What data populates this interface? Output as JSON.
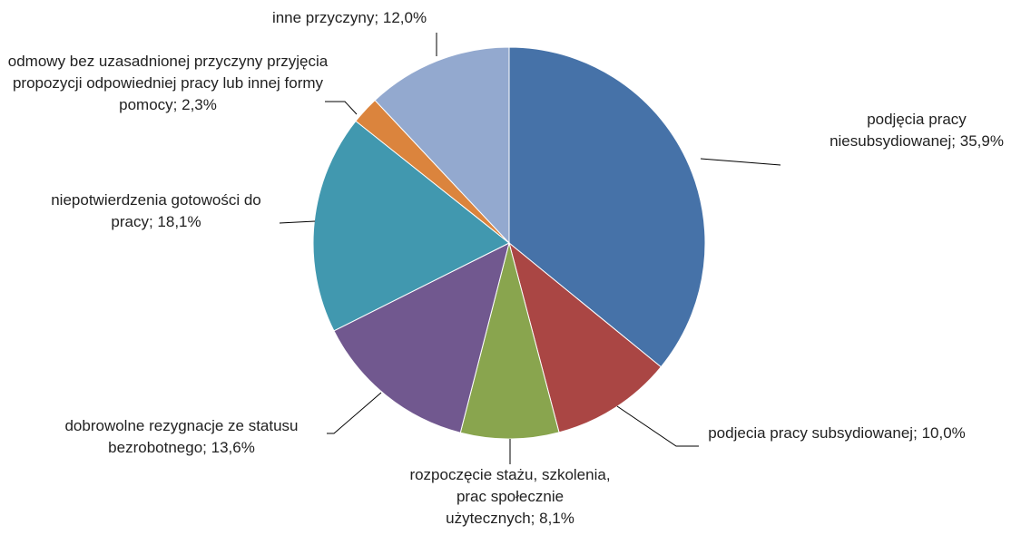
{
  "chart_data": {
    "type": "pie",
    "categories": [
      "podjęcia pracy niesubsydiowanej;",
      "podjecia pracy subsydiowanej;",
      "rozpoczęcie stażu, szkolenia, prac społecznie użytecznych;",
      "dobrowolne rezygnacje ze statusu bezrobotnego;",
      "niepotwierdzenia gotowości do pracy;",
      "odmowy bez uzasadnionej przyczyny przyjęcia propozycji odpowiedniej pracy lub innej formy pomocy;",
      "inne przyczyny;"
    ],
    "values": [
      35.9,
      10.0,
      8.1,
      13.6,
      18.1,
      2.3,
      12.0
    ],
    "value_labels": [
      "35,9%",
      "10,0%",
      "8,1%",
      "13,6%",
      "18,1%",
      "2,3%",
      "12,0%"
    ],
    "colors": [
      "#4672a8",
      "#aa4644",
      "#89a54e",
      "#71588f",
      "#4198af",
      "#db843d",
      "#93a9cf"
    ]
  }
}
